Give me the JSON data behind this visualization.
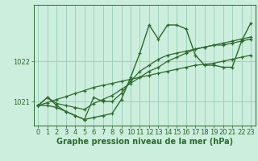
{
  "x": [
    0,
    1,
    2,
    3,
    4,
    5,
    6,
    7,
    8,
    9,
    10,
    11,
    12,
    13,
    14,
    15,
    16,
    17,
    18,
    19,
    20,
    21,
    22,
    23
  ],
  "line1": [
    1020.9,
    1020.9,
    1020.85,
    1020.75,
    1020.65,
    1020.55,
    1020.6,
    1020.65,
    1020.7,
    1021.05,
    1021.6,
    1022.2,
    1022.9,
    1022.55,
    1022.9,
    1022.9,
    1022.8,
    1022.15,
    1021.9,
    1021.9,
    1021.85,
    1021.85,
    1022.5,
    1022.95
  ],
  "line2": [
    1020.9,
    1021.1,
    1020.9,
    1020.75,
    1020.65,
    1020.55,
    1021.1,
    1021.0,
    1021.0,
    1021.2,
    1021.5,
    1021.75,
    1021.9,
    1022.05,
    1022.15,
    1022.2,
    1022.25,
    1022.3,
    1022.35,
    1022.4,
    1022.4,
    1022.45,
    1022.5,
    1022.55
  ],
  "line3": [
    1020.9,
    1021.1,
    1020.95,
    1020.9,
    1020.85,
    1020.8,
    1020.95,
    1021.05,
    1021.15,
    1021.3,
    1021.45,
    1021.6,
    1021.75,
    1021.85,
    1022.0,
    1022.1,
    1022.2,
    1022.3,
    1022.35,
    1022.4,
    1022.45,
    1022.5,
    1022.55,
    1022.6
  ],
  "line4": [
    1020.9,
    1020.97,
    1021.05,
    1021.12,
    1021.2,
    1021.27,
    1021.35,
    1021.4,
    1021.45,
    1021.5,
    1021.55,
    1021.6,
    1021.65,
    1021.7,
    1021.75,
    1021.8,
    1021.85,
    1021.9,
    1021.92,
    1021.95,
    1022.0,
    1022.05,
    1022.1,
    1022.15
  ],
  "bg_color": "#cceedd",
  "grid_color": "#99ccbb",
  "line_color": "#2d6a2d",
  "ylim": [
    1020.4,
    1023.4
  ],
  "xlim": [
    -0.5,
    23.5
  ],
  "xlabel": "Graphe pression niveau de la mer (hPa)",
  "yticks": [
    1021,
    1022
  ],
  "xticks": [
    0,
    1,
    2,
    3,
    4,
    5,
    6,
    7,
    8,
    9,
    10,
    11,
    12,
    13,
    14,
    15,
    16,
    17,
    18,
    19,
    20,
    21,
    22,
    23
  ],
  "title_fontsize": 7.0,
  "tick_fontsize": 6.0
}
